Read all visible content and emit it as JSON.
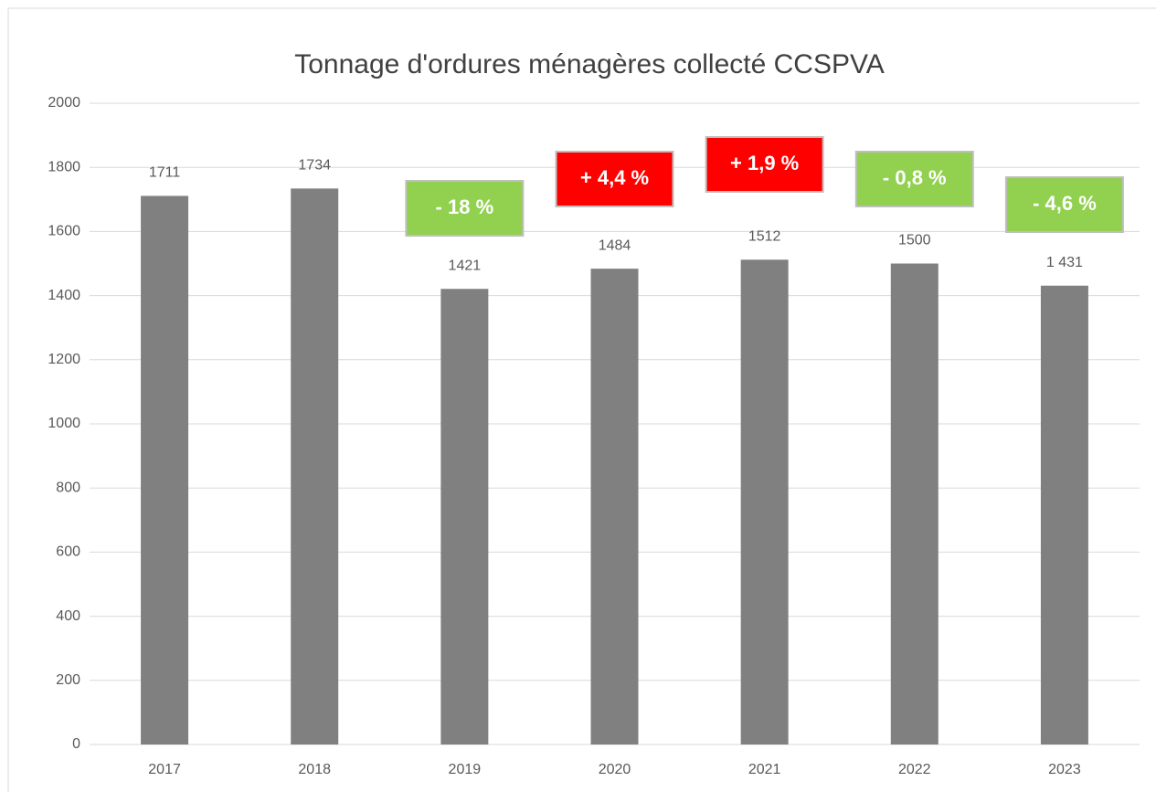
{
  "chart_data": {
    "type": "bar",
    "title": "Tonnage d'ordures ménagères collecté CCSPVA",
    "categories": [
      "2017",
      "2018",
      "2019",
      "2020",
      "2021",
      "2022",
      "2023"
    ],
    "values": [
      1711,
      1734,
      1421,
      1484,
      1512,
      1500,
      1431
    ],
    "value_labels": [
      "1711",
      "1734",
      "1421",
      "1484",
      "1512",
      "1500",
      "1 431"
    ],
    "color": "#808080",
    "ylim": [
      0,
      2000
    ],
    "yticks": [
      0,
      200,
      400,
      600,
      800,
      1000,
      1200,
      1400,
      1600,
      1800,
      2000
    ],
    "grid": true,
    "annotations": [
      {
        "text": "- 18 %",
        "category": "2019",
        "color": "#92d050"
      },
      {
        "text": "+ 4,4 %",
        "category": "2020",
        "color": "#ff0000"
      },
      {
        "text": "+ 1,9 %",
        "category": "2021",
        "color": "#ff0000"
      },
      {
        "text": "- 0,8 %",
        "category": "2022",
        "color": "#92d050"
      },
      {
        "text": "- 4,6 %",
        "category": "2023",
        "color": "#92d050"
      }
    ]
  }
}
